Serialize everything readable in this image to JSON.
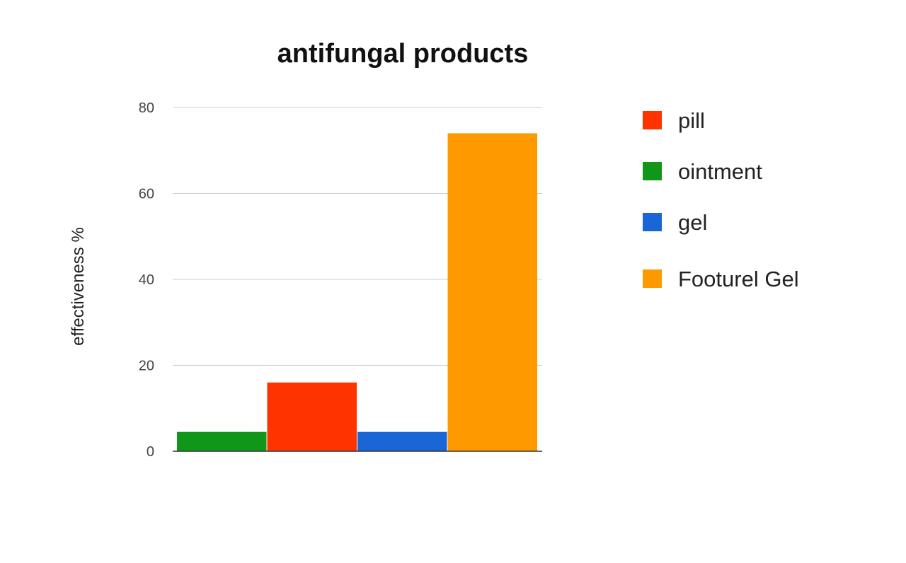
{
  "chart_data": {
    "type": "bar",
    "title": "antifungal products",
    "xlabel": "",
    "ylabel": "effectiveness %",
    "ylim": [
      0,
      80
    ],
    "yticks": [
      0,
      20,
      40,
      60,
      80
    ],
    "grid": true,
    "legend_position": "right",
    "series": [
      {
        "name": "ointment",
        "value": 4.5,
        "color": "#109618"
      },
      {
        "name": "pill",
        "value": 16,
        "color": "#ff3300"
      },
      {
        "name": "gel",
        "value": 4.5,
        "color": "#1a66d6"
      },
      {
        "name": "Footurel Gel",
        "value": 74,
        "color": "#ff9900"
      }
    ],
    "legend_order": [
      "pill",
      "ointment",
      "gel",
      "Footurel Gel"
    ]
  }
}
